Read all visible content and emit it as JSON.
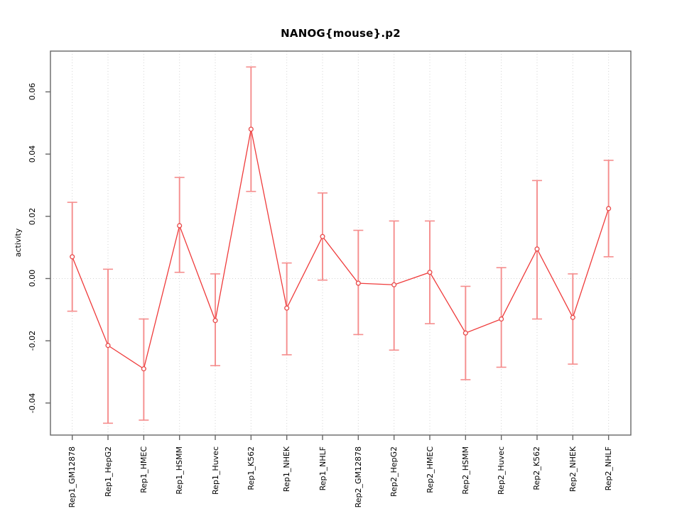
{
  "page": {
    "background": "#ffffff"
  },
  "chart_data": {
    "type": "line",
    "title": "NANOG{mouse}.p2",
    "ylabel": "activity",
    "xlabel": "",
    "legend": "none",
    "grid": "vertical dotted gridline at each category; dotted horizontal line at y=0",
    "marker": "open-circle",
    "error_bars": true,
    "categories": [
      "Rep1_GM12878",
      "Rep1_HepG2",
      "Rep1_HMEC",
      "Rep1_HSMM",
      "Rep1_Huvec",
      "Rep1_K562",
      "Rep1_NHEK",
      "Rep1_NHLF",
      "Rep2_GM12878",
      "Rep2_HepG2",
      "Rep2_HMEC",
      "Rep2_HSMM",
      "Rep2_Huvec",
      "Rep2_K562",
      "Rep2_NHEK",
      "Rep2_NHLF"
    ],
    "series": [
      {
        "name": "activity",
        "values": [
          0.007,
          -0.0215,
          -0.029,
          0.017,
          -0.0135,
          0.048,
          -0.0095,
          0.0135,
          -0.0015,
          -0.002,
          0.002,
          -0.0175,
          -0.013,
          0.0095,
          -0.0125,
          0.0225
        ],
        "ci_low": [
          -0.0105,
          -0.0465,
          -0.0455,
          0.002,
          -0.028,
          0.028,
          -0.0245,
          -0.0005,
          -0.018,
          -0.023,
          -0.0145,
          -0.0325,
          -0.0285,
          -0.013,
          -0.0275,
          0.007
        ],
        "ci_high": [
          0.0245,
          0.003,
          -0.013,
          0.0325,
          0.0015,
          0.068,
          0.005,
          0.0275,
          0.0155,
          0.0185,
          0.0185,
          -0.0025,
          0.0035,
          0.0315,
          0.0015,
          0.038
        ]
      }
    ],
    "yticks": [
      {
        "value": -0.04,
        "label": "-0.04"
      },
      {
        "value": -0.02,
        "label": "-0.02"
      },
      {
        "value": 0.0,
        "label": "0.00"
      },
      {
        "value": 0.02,
        "label": "0.02"
      },
      {
        "value": 0.04,
        "label": "0.04"
      },
      {
        "value": 0.06,
        "label": "0.06"
      }
    ],
    "ylim": [
      -0.0503,
      0.0731
    ],
    "colors": {
      "point": "#e84a4a",
      "line": "#ef3b3b",
      "error_bar": "#f58d8d",
      "grid": "#d4d4d4",
      "axis": "#666666",
      "text": "#000000"
    }
  }
}
